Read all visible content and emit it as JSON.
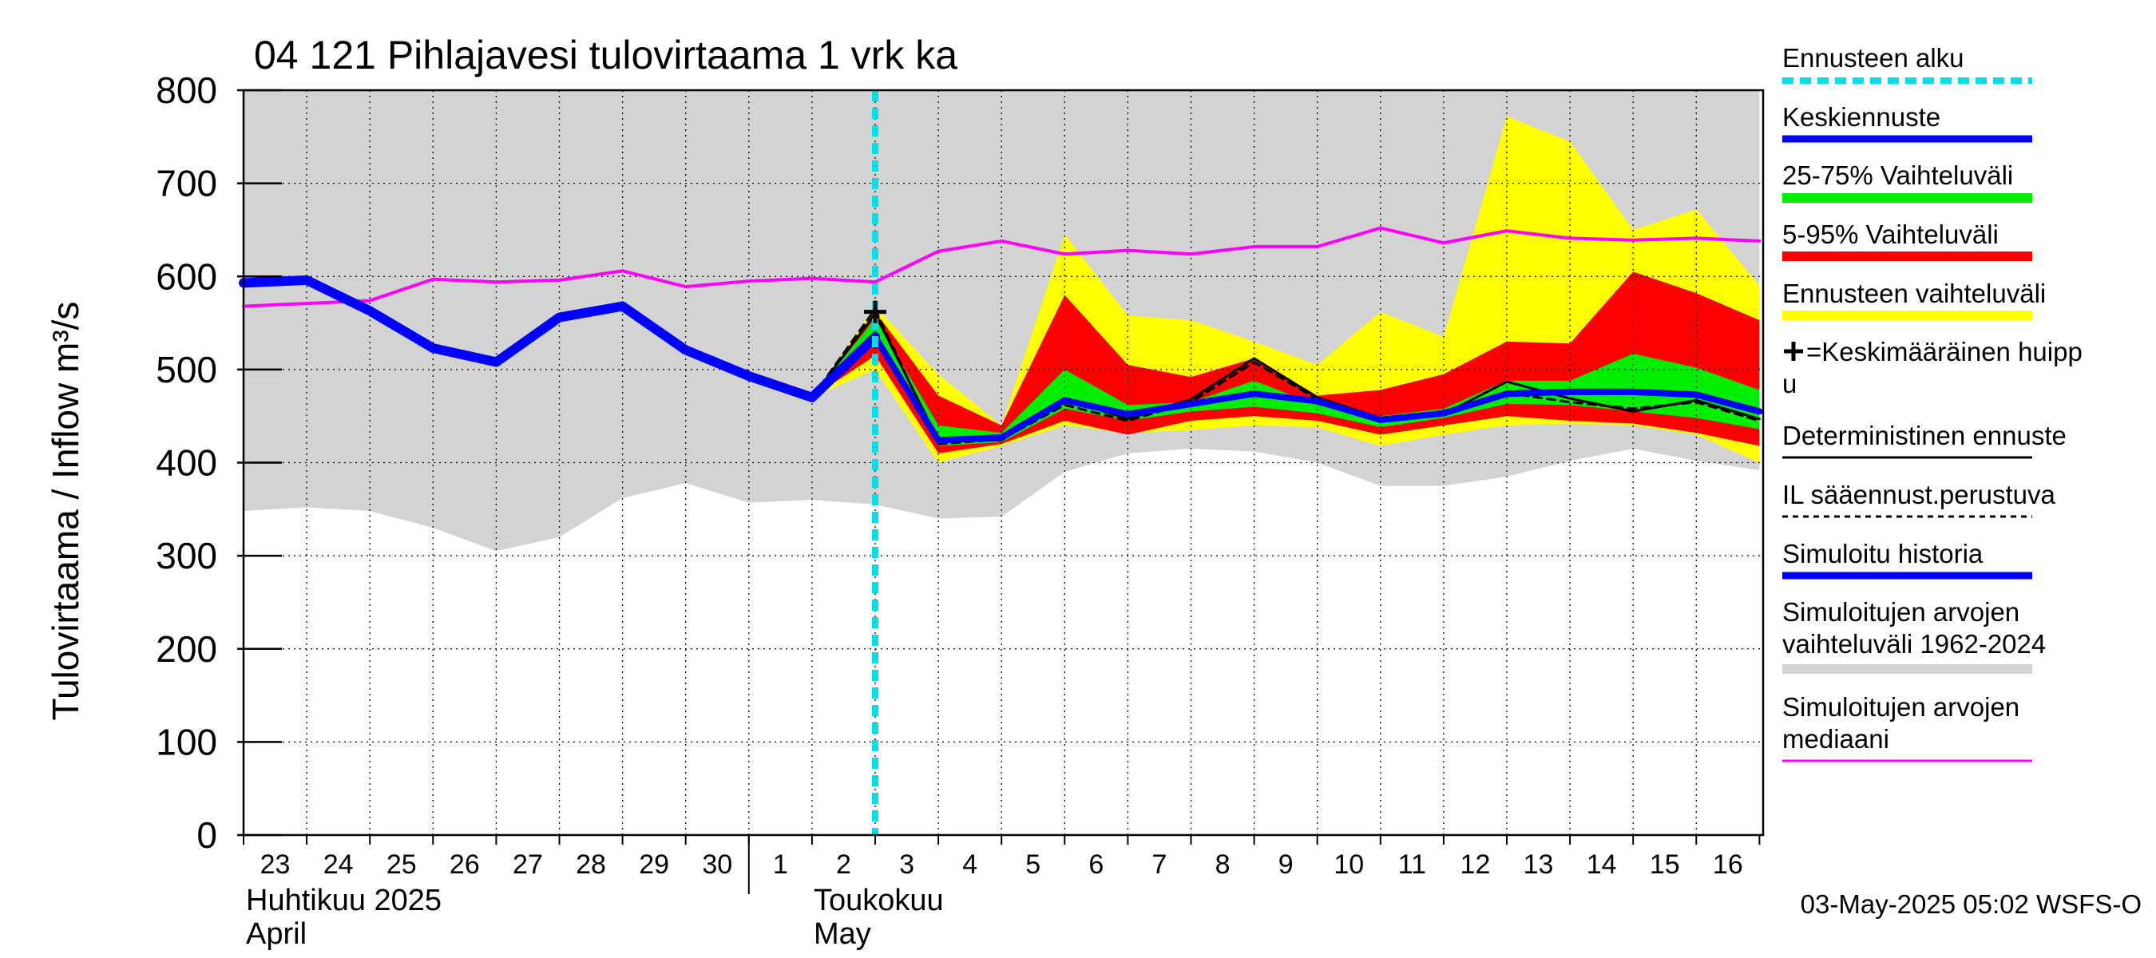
{
  "chart_data": {
    "type": "line",
    "title": "04 121 Pihlajavesi tulovirtaama 1 vrk ka",
    "ylabel": "Tulovirtaama / Inflow    m³/s",
    "ylim": [
      0,
      800
    ],
    "yticks": [
      0,
      100,
      200,
      300,
      400,
      500,
      600,
      700,
      800
    ],
    "grid": true,
    "legend_position": "right",
    "date_ticks": [
      "23",
      "24",
      "25",
      "26",
      "27",
      "28",
      "29",
      "30",
      "1",
      "2",
      "3",
      "4",
      "5",
      "6",
      "7",
      "8",
      "9",
      "10",
      "11",
      "12",
      "13",
      "14",
      "15",
      "16"
    ],
    "x_days": [
      0,
      1,
      2,
      3,
      4,
      5,
      6,
      7,
      8,
      9,
      10,
      11,
      12,
      13,
      14,
      15,
      16,
      17,
      18,
      19,
      20,
      21,
      22,
      23,
      24
    ],
    "months": [
      {
        "fi": "Huhtikuu  2025",
        "en": "April",
        "start_day": 0
      },
      {
        "fi": "Toukokuu",
        "en": "May",
        "start_day": 8
      }
    ],
    "forecast_start_day": 10,
    "peak_marker": {
      "day": 10,
      "value": 562
    },
    "footer": "03-May-2025 05:02 WSFS-O",
    "colors": {
      "forecast_start": "#00e0e8",
      "mean_forecast": "#0000ff",
      "range_25_75": "#00ee00",
      "range_5_95": "#ff0000",
      "forecast_range": "#ffff00",
      "deterministic": "#000000",
      "il_forecast": "#000000",
      "simulated_history": "#0000ff",
      "historical_range": "#d3d3d3",
      "historical_median": "#ff00ff"
    },
    "series": [
      {
        "key": "historical_range",
        "kind": "band",
        "days": [
          0,
          1,
          2,
          3,
          4,
          5,
          6,
          7,
          8,
          9,
          10,
          11,
          12,
          13,
          14,
          15,
          16,
          17,
          18,
          19,
          20,
          21,
          22,
          23,
          24
        ],
        "low": [
          348,
          352,
          348,
          330,
          305,
          320,
          362,
          378,
          357,
          360,
          355,
          340,
          342,
          390,
          410,
          415,
          412,
          400,
          375,
          375,
          385,
          402,
          415,
          402,
          392
        ],
        "high": [
          800,
          800,
          800,
          800,
          800,
          800,
          800,
          800,
          800,
          800,
          800,
          800,
          800,
          800,
          800,
          800,
          800,
          800,
          800,
          800,
          800,
          800,
          800,
          800,
          800
        ]
      },
      {
        "key": "forecast_range",
        "kind": "band",
        "days": [
          9,
          10,
          11,
          12,
          13,
          14,
          15,
          16,
          17,
          18,
          19,
          20,
          21,
          22,
          23,
          24
        ],
        "low": [
          470,
          500,
          400,
          418,
          440,
          432,
          435,
          440,
          438,
          418,
          430,
          440,
          442,
          440,
          430,
          400
        ],
        "high": [
          470,
          568,
          495,
          440,
          645,
          558,
          553,
          530,
          505,
          562,
          535,
          772,
          745,
          650,
          672,
          590
        ]
      },
      {
        "key": "range_5_95",
        "kind": "band",
        "days": [
          9,
          10,
          11,
          12,
          13,
          14,
          15,
          16,
          17,
          18,
          19,
          20,
          21,
          22,
          23,
          24
        ],
        "low": [
          470,
          515,
          410,
          420,
          445,
          430,
          445,
          450,
          445,
          430,
          440,
          450,
          445,
          442,
          432,
          418
        ],
        "high": [
          470,
          562,
          472,
          440,
          580,
          505,
          492,
          512,
          472,
          478,
          495,
          530,
          528,
          605,
          582,
          553
        ]
      },
      {
        "key": "range_25_75",
        "kind": "band",
        "days": [
          9,
          10,
          11,
          12,
          13,
          14,
          15,
          16,
          17,
          18,
          19,
          20,
          21,
          22,
          23,
          24
        ],
        "low": [
          470,
          532,
          418,
          422,
          458,
          445,
          455,
          460,
          453,
          438,
          448,
          463,
          462,
          455,
          448,
          436
        ],
        "high": [
          470,
          555,
          440,
          432,
          500,
          462,
          465,
          488,
          462,
          450,
          458,
          488,
          488,
          517,
          502,
          478
        ]
      },
      {
        "key": "historical_median",
        "name": "Simuloitujen arvojen mediaani",
        "kind": "line",
        "width": 4,
        "days": [
          0,
          1,
          2,
          3,
          4,
          5,
          6,
          7,
          8,
          9,
          10,
          11,
          12,
          13,
          14,
          15,
          16,
          17,
          18,
          19,
          20,
          21,
          22,
          23,
          24
        ],
        "values": [
          568,
          571,
          574,
          597,
          594,
          596,
          606,
          589,
          595,
          598,
          594,
          627,
          638,
          624,
          628,
          624,
          632,
          632,
          652,
          636,
          649,
          641,
          639,
          641,
          638
        ]
      },
      {
        "key": "deterministic",
        "name": "Deterministinen ennuste",
        "kind": "line",
        "width": 3,
        "days": [
          9,
          10,
          11,
          12,
          13,
          14,
          15,
          16,
          17,
          18,
          19,
          20,
          21,
          22,
          23,
          24
        ],
        "values": [
          470,
          560,
          424,
          424,
          468,
          447,
          468,
          512,
          470,
          448,
          452,
          487,
          469,
          455,
          467,
          447
        ]
      },
      {
        "key": "il_forecast",
        "name": "IL sääennust.perustuva",
        "kind": "line",
        "width": 3,
        "dash": "10,7",
        "days": [
          9,
          10,
          11,
          12,
          13,
          14,
          15,
          16,
          17,
          18,
          19,
          20,
          21,
          22,
          23,
          24
        ],
        "values": [
          470,
          565,
          420,
          425,
          462,
          445,
          465,
          508,
          468,
          446,
          452,
          475,
          465,
          458,
          465,
          445
        ]
      },
      {
        "key": "simulated_history",
        "name": "Simuloitu historia",
        "kind": "line",
        "width": 12,
        "days": [
          0,
          1,
          2,
          3,
          4,
          5,
          6,
          7,
          8,
          9,
          10
        ],
        "values": [
          593,
          596,
          563,
          523,
          508,
          556,
          568,
          521,
          493,
          470,
          535
        ]
      },
      {
        "key": "mean_forecast",
        "name": "Keskiennuste",
        "kind": "line",
        "width": 8,
        "days": [
          10,
          11,
          12,
          13,
          14,
          15,
          16,
          17,
          18,
          19,
          20,
          21,
          22,
          23,
          24
        ],
        "values": [
          535,
          424,
          427,
          467,
          452,
          463,
          474,
          466,
          446,
          453,
          474,
          476,
          476,
          473,
          455
        ]
      }
    ],
    "legend": [
      {
        "label": "Ennusteen alku",
        "key": "forecast_start",
        "style": "dash"
      },
      {
        "label": "Keskiennuste",
        "key": "mean_forecast",
        "style": "line"
      },
      {
        "label": "25-75% Vaihteluväli",
        "key": "range_25_75",
        "style": "thick"
      },
      {
        "label": "5-95% Vaihteluväli",
        "key": "range_5_95",
        "style": "thick"
      },
      {
        "label": "Ennusteen vaihteluväli",
        "key": "forecast_range",
        "style": "thick"
      },
      {
        "label": "=Keskimääräinen huipp",
        "label2": "u",
        "key": "peak",
        "style": "marker"
      },
      {
        "label": "Deterministinen ennuste",
        "key": "deterministic",
        "style": "thin"
      },
      {
        "label": "IL sääennust.perustuva",
        "key": "il_forecast",
        "style": "dotted"
      },
      {
        "label": "Simuloitu historia",
        "key": "simulated_history",
        "style": "line"
      },
      {
        "label": "Simuloitujen arvojen",
        "label2": "vaihteluväli 1962-2024",
        "key": "historical_range",
        "style": "thick"
      },
      {
        "label": "Simuloitujen arvojen",
        "label2": "mediaani",
        "key": "historical_median",
        "style": "thin"
      }
    ]
  }
}
